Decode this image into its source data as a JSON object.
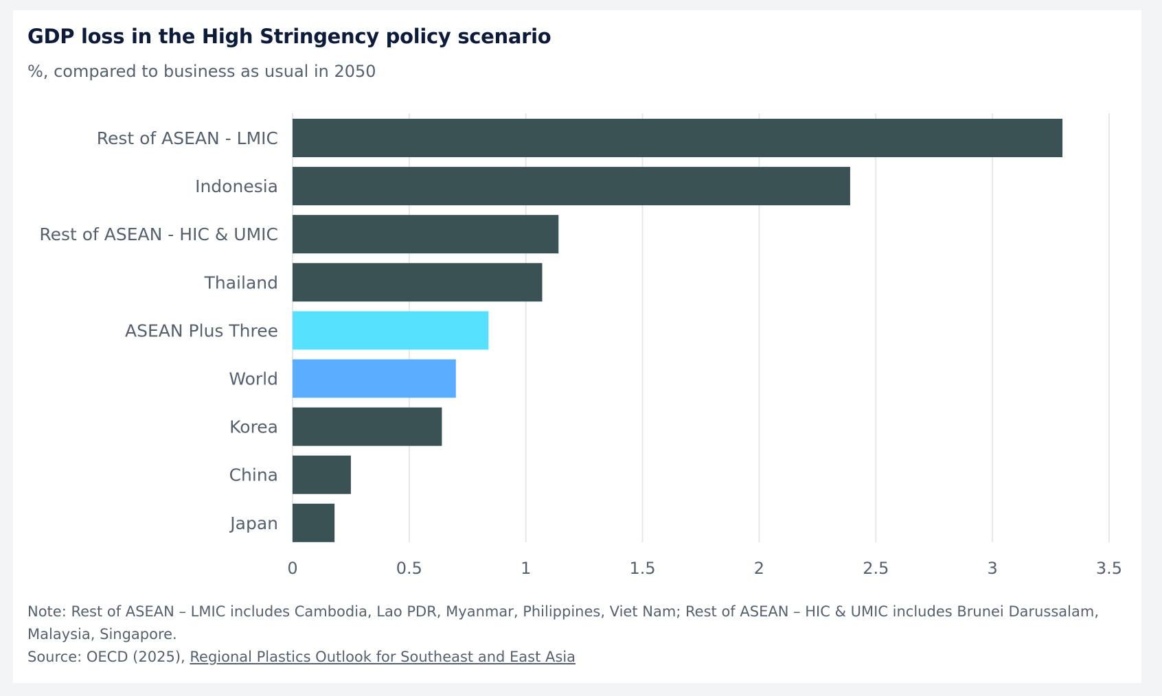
{
  "title": "GDP loss in the High Stringency policy scenario",
  "subtitle": "%, compared to business as usual in 2050",
  "chart_data": {
    "type": "bar",
    "orientation": "horizontal",
    "title": "GDP loss in the High Stringency policy scenario",
    "subtitle": "%, compared to business as usual in 2050",
    "categories": [
      "Rest of ASEAN - LMIC",
      "Indonesia",
      "Rest of ASEAN - HIC & UMIC",
      "Thailand",
      "ASEAN Plus Three",
      "World",
      "Korea",
      "China",
      "Japan"
    ],
    "values": [
      3.3,
      2.39,
      1.14,
      1.07,
      0.84,
      0.7,
      0.64,
      0.25,
      0.18
    ],
    "colors": [
      "#3b5254",
      "#3b5254",
      "#3b5254",
      "#3b5254",
      "#56e2ff",
      "#5aadff",
      "#3b5254",
      "#3b5254",
      "#3b5254"
    ],
    "xlim": [
      0,
      3.5
    ],
    "xticks": [
      0,
      0.5,
      1,
      1.5,
      2,
      2.5,
      3,
      3.5
    ],
    "xtick_labels": [
      "0",
      "0.5",
      "1",
      "1.5",
      "2",
      "2.5",
      "3",
      "3.5"
    ],
    "grid": true
  },
  "note": "Note: Rest of ASEAN – LMIC includes Cambodia, Lao PDR, Myanmar, Philippines, Viet Nam; Rest of ASEAN – HIC & UMIC includes Brunei Darussalam, Malaysia, Singapore.",
  "source_prefix": "Source: OECD (2025), ",
  "source_link": "Regional Plastics Outlook for Southeast and East Asia"
}
